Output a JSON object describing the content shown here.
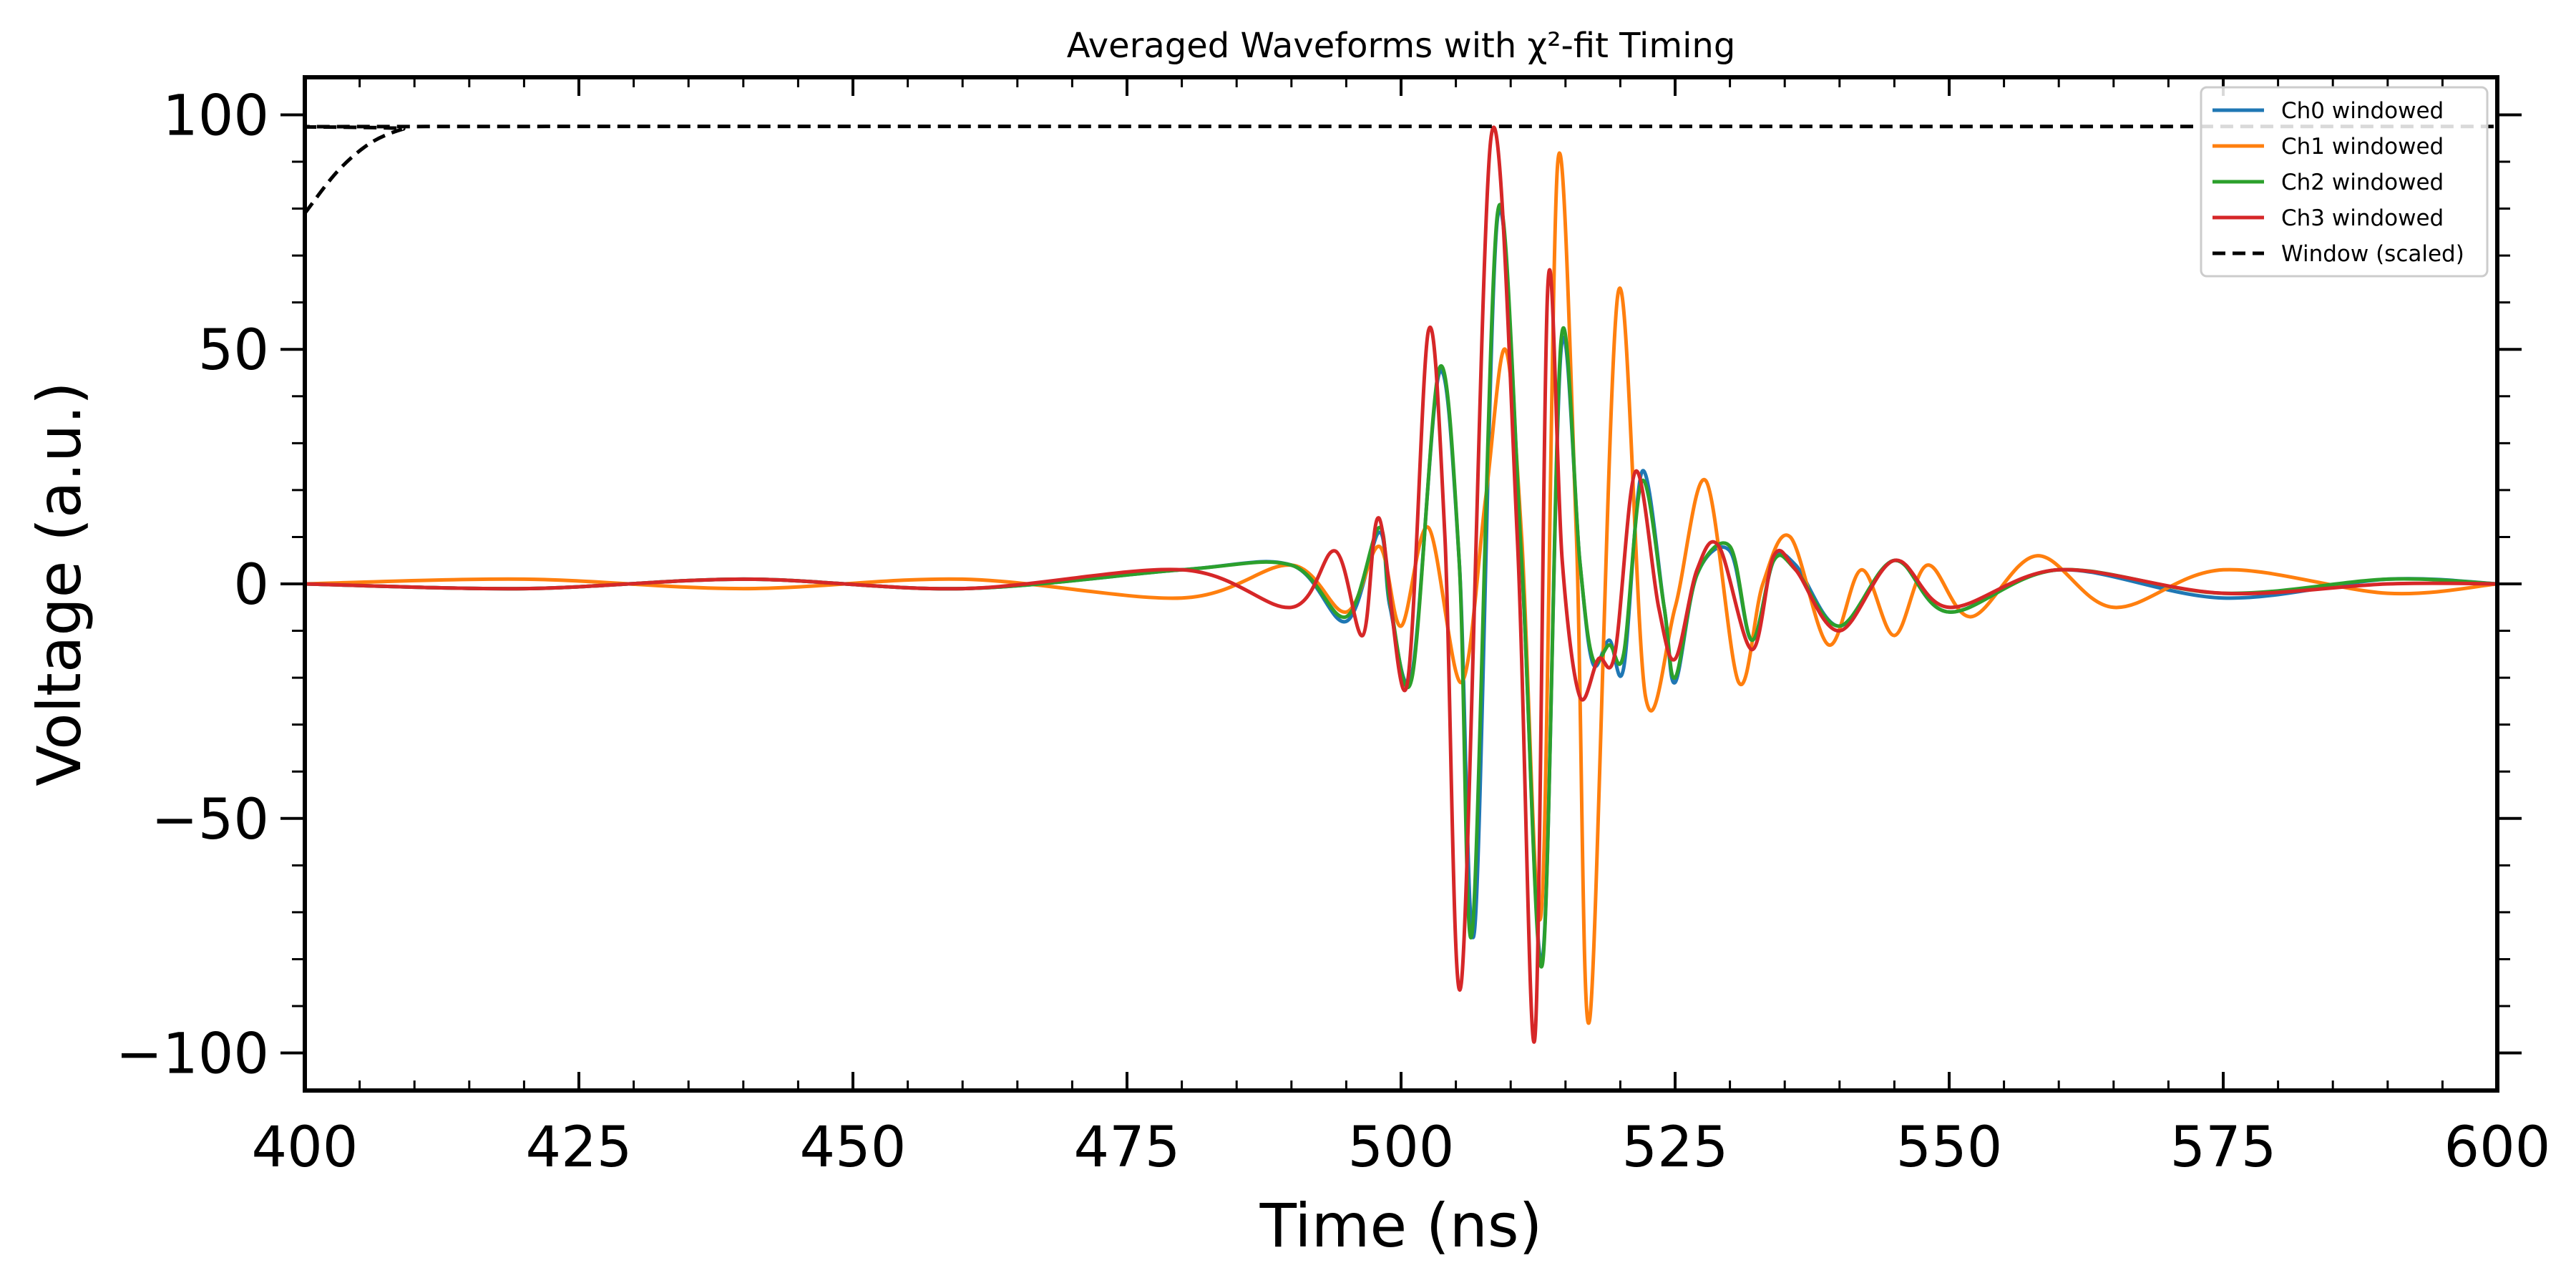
{
  "chart_data": {
    "type": "line",
    "title": "Averaged Waveforms with χ²-fit Timing",
    "xlabel": "Time (ns)",
    "ylabel": "Voltage (a.u.)",
    "xlim": [
      400,
      600
    ],
    "ylim": [
      -108,
      108
    ],
    "xticks": [
      400,
      425,
      450,
      475,
      500,
      525,
      550,
      575,
      600
    ],
    "xtick_labels": [
      "400",
      "425",
      "450",
      "475",
      "500",
      "525",
      "550",
      "575",
      "600"
    ],
    "yticks": [
      -100,
      -50,
      0,
      50,
      100
    ],
    "ytick_labels": [
      "−100",
      "−50",
      "0",
      "50",
      "100"
    ],
    "legend_position": "top-right",
    "grid": false,
    "series": [
      {
        "name": "Ch0 windowed",
        "color": "#1f77b4",
        "style": "solid",
        "x": [
          400,
          420,
          440,
          460,
          480,
          490,
          495,
          498,
          499,
          501,
          503.5,
          505.3,
          506.7,
          508.8,
          511,
          512.9,
          514.6,
          516.3,
          517.5,
          519,
          520.3,
          522,
          524,
          525,
          527,
          530,
          532,
          534,
          536,
          540,
          545,
          550,
          560,
          575,
          590,
          600
        ],
        "y": [
          0,
          -1,
          1,
          -1,
          3,
          4,
          -8,
          11,
          -5,
          -19,
          45,
          5,
          -74,
          78,
          5,
          -80,
          50,
          5,
          -17,
          -12,
          -18,
          24,
          -5,
          -21,
          2,
          7,
          -12,
          5,
          4,
          -9,
          5,
          -6,
          3,
          -3,
          1,
          0
        ]
      },
      {
        "name": "Ch1 windowed",
        "color": "#ff7f0e",
        "style": "solid",
        "x": [
          400,
          420,
          440,
          460,
          480,
          490,
          495,
          498,
          500,
          502.5,
          505.5,
          507.7,
          509.5,
          511,
          512.8,
          514.3,
          516,
          517.2,
          519.8,
          522.3,
          525,
          527.8,
          530.8,
          533,
          535.5,
          539,
          542,
          545,
          548,
          552,
          558,
          565,
          575,
          590,
          600
        ],
        "y": [
          0,
          1,
          -1,
          1,
          -3,
          4,
          -6,
          8,
          -9,
          12,
          -21,
          18,
          50,
          10,
          -70,
          90,
          10,
          -93,
          62,
          -24,
          -5,
          22,
          -21,
          0,
          10,
          -13,
          3,
          -11,
          4,
          -7,
          6,
          -5,
          3,
          -2,
          0
        ]
      },
      {
        "name": "Ch2 windowed",
        "color": "#2ca02c",
        "style": "solid",
        "x": [
          400,
          420,
          440,
          460,
          480,
          490,
          495,
          498,
          499,
          501,
          503.5,
          505.3,
          506.5,
          508.8,
          511,
          512.9,
          514.6,
          516.3,
          517.5,
          519,
          520.3,
          522,
          524,
          525,
          527,
          530,
          532,
          534,
          536,
          540,
          545,
          550,
          560,
          575,
          590,
          600
        ],
        "y": [
          0,
          -1,
          1,
          -1,
          3,
          4,
          -7,
          12,
          -4,
          -20,
          46,
          5,
          -74,
          79,
          5,
          -81,
          52,
          5,
          -16,
          -13,
          -15,
          22,
          -5,
          -20,
          2,
          8,
          -12,
          5,
          3,
          -9,
          5,
          -6,
          3,
          -2,
          1,
          0
        ]
      },
      {
        "name": "Ch3 windowed",
        "color": "#d62728",
        "style": "solid",
        "x": [
          400,
          420,
          440,
          460,
          480,
          490,
          494,
          496.5,
          498,
          500.5,
          502.5,
          504,
          505.5,
          508.2,
          510.6,
          512.2,
          513.4,
          514.7,
          516.3,
          518,
          519.5,
          521.4,
          523.5,
          525,
          527,
          529,
          532,
          534,
          536,
          540,
          545,
          550,
          560,
          575,
          590,
          600
        ],
        "y": [
          0,
          -1,
          1,
          -1,
          3,
          -5,
          7,
          -11,
          14,
          -22,
          54,
          10,
          -85,
          95,
          10,
          -97,
          64,
          5,
          -24,
          -16,
          -15,
          24,
          -5,
          -16,
          3,
          8,
          -14,
          6,
          3,
          -10,
          5,
          -5,
          3,
          -2,
          0,
          0
        ]
      },
      {
        "name": "Window (scaled)",
        "color": "#000000",
        "style": "dashed",
        "x": [
          400,
          403,
          406,
          409,
          411,
          600
        ],
        "y": [
          79,
          88,
          94,
          97,
          97.5,
          97.5
        ]
      }
    ]
  }
}
